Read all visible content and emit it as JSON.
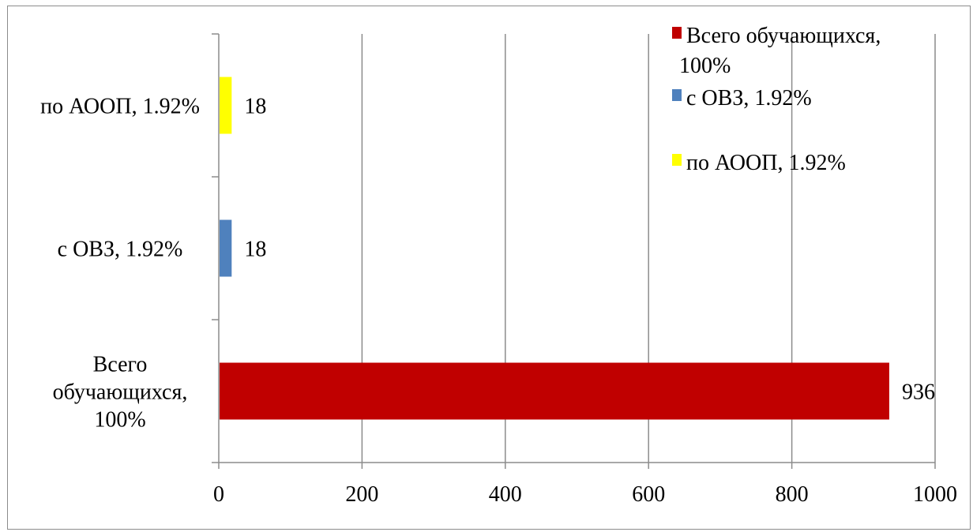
{
  "chart_data": {
    "type": "bar",
    "orientation": "horizontal",
    "categories": [
      [
        "Всего",
        "обучающихся,",
        "100%"
      ],
      [
        "с ОВЗ, 1.92%"
      ],
      [
        "по АООП, 1.92%"
      ]
    ],
    "series": [
      {
        "name": "Всего обучающихся, 100%",
        "color": "#C00000",
        "values": [
          936,
          null,
          null
        ]
      },
      {
        "name": "с ОВЗ, 1.92%",
        "color": "#4F81BD",
        "values": [
          null,
          18,
          null
        ]
      },
      {
        "name": "по АООП, 1.92%",
        "color": "#FFFF00",
        "values": [
          null,
          null,
          18
        ]
      }
    ],
    "data_labels": [
      "936",
      "18",
      "18"
    ],
    "xlim": [
      0,
      1000
    ],
    "xticks": [
      0,
      200,
      400,
      600,
      800,
      1000
    ],
    "grid": true,
    "legend": {
      "position": "top-right",
      "items": [
        {
          "lines": [
            "Всего обучающихся,",
            "100%"
          ],
          "color": "#C00000"
        },
        {
          "lines": [
            "с ОВЗ, 1.92%"
          ],
          "color": "#4F81BD"
        },
        {
          "lines": [
            "по АООП, 1.92%"
          ],
          "color": "#FFFF00"
        }
      ]
    },
    "title": "",
    "xlabel": "",
    "ylabel": ""
  }
}
